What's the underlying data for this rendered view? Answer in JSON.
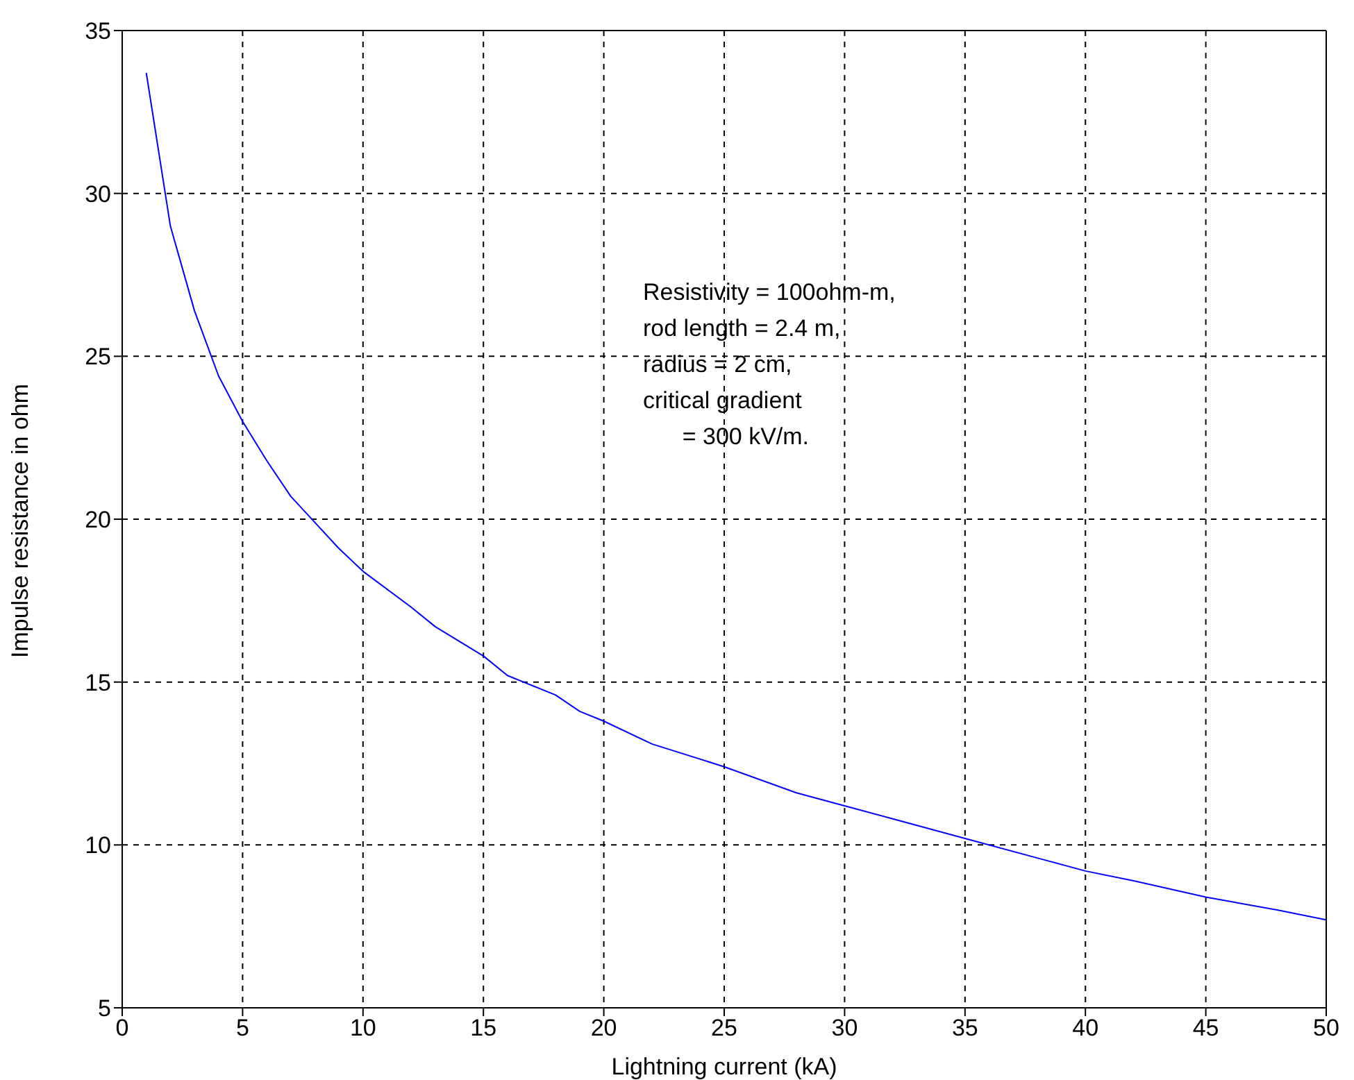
{
  "chart_data": {
    "type": "line",
    "xlabel": "Lightning current (kA)",
    "ylabel": "Impulse resistance in ohm",
    "x": [
      1,
      2,
      3,
      4,
      5,
      6,
      7,
      8,
      9,
      10,
      12,
      13,
      15,
      16,
      18,
      19,
      20,
      22,
      25,
      28,
      30,
      32,
      35,
      38,
      40,
      42,
      45,
      48,
      50
    ],
    "series": [
      {
        "color": "#0000ff",
        "values": [
          33.7,
          29.0,
          26.4,
          24.4,
          23.0,
          21.8,
          20.7,
          19.9,
          19.1,
          18.4,
          17.3,
          16.7,
          15.8,
          15.2,
          14.6,
          14.1,
          13.8,
          13.1,
          12.4,
          11.6,
          11.2,
          10.8,
          10.2,
          9.6,
          9.2,
          8.9,
          8.4,
          8.0,
          7.7
        ]
      }
    ],
    "xlim": [
      0,
      50
    ],
    "xticks": [
      0,
      5,
      10,
      15,
      20,
      25,
      30,
      35,
      40,
      45,
      50
    ],
    "ylim": [
      5,
      35
    ],
    "yticks": [
      5,
      10,
      15,
      20,
      25,
      30,
      35
    ],
    "grid": true,
    "marker": "none",
    "line_style": "solid",
    "annotations": [
      "Resistivity = 100ohm-m,\nrod length = 2.4 m,\nradius = 2 cm,\ncritical gradient\n      = 300 kV/m."
    ]
  }
}
